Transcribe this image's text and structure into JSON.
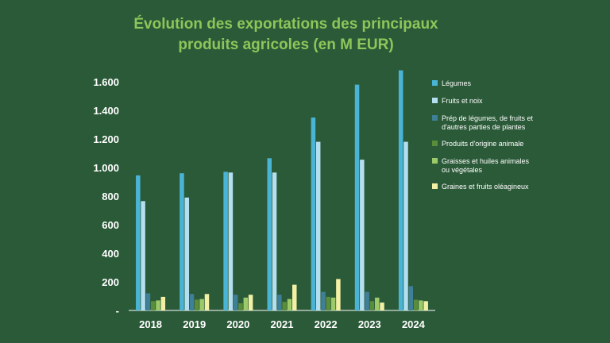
{
  "chart_data": {
    "type": "bar",
    "title_line1": "Évolution des exportations des principaux",
    "title_line2": "produits agricoles (en M EUR)",
    "xlabel": "",
    "ylabel": "",
    "ylim": [
      0,
      1600
    ],
    "y_ticks": [
      "-",
      "200",
      "400",
      "600",
      "800",
      "1.000",
      "1.200",
      "1.400",
      "1.600"
    ],
    "categories": [
      "2018",
      "2019",
      "2020",
      "2021",
      "2022",
      "2023",
      "2024"
    ],
    "legend_position": "right",
    "series": [
      {
        "name": "Légumes",
        "legend_lines": [
          "Légumes"
        ],
        "color": "#4ab4d6",
        "values": [
          945,
          960,
          970,
          1065,
          1350,
          1580,
          1680
        ]
      },
      {
        "name": "Fruits et noix",
        "legend_lines": [
          "Fruits et noix"
        ],
        "color": "#b3dff0",
        "values": [
          765,
          790,
          965,
          965,
          1180,
          1055,
          1180
        ]
      },
      {
        "name": "Prép de légumes, de fruits et d'autres parties de plantes",
        "legend_lines": [
          "Prép de légumes, de fruits et",
          "d'autres parties de plantes"
        ],
        "color": "#3f7f98",
        "values": [
          120,
          115,
          110,
          110,
          130,
          130,
          170
        ]
      },
      {
        "name": "Produits d'origine animale",
        "legend_lines": [
          "Produits d'origine animale"
        ],
        "color": "#5a8d3a",
        "values": [
          65,
          75,
          50,
          60,
          95,
          65,
          75
        ]
      },
      {
        "name": "Graisses et huiles animales ou végétales",
        "legend_lines": [
          "Graisses et huiles animales",
          "ou végétales"
        ],
        "color": "#9cc96a",
        "values": [
          70,
          80,
          90,
          80,
          90,
          90,
          70
        ]
      },
      {
        "name": "Graines et fruits oléagineux",
        "legend_lines": [
          "Graines et fruits oléagineux"
        ],
        "color": "#f2f0a5",
        "values": [
          95,
          115,
          110,
          180,
          220,
          55,
          65
        ]
      }
    ]
  }
}
